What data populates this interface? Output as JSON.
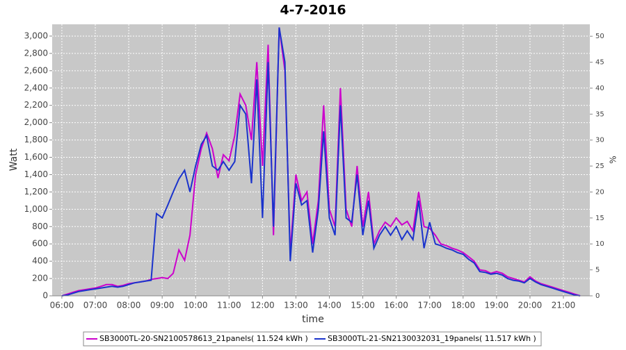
{
  "chart_data": {
    "type": "line",
    "title": "4-7-2016",
    "x_label": "time",
    "y_label": "Watt",
    "y2_label": "%",
    "x": [
      6,
      6.17,
      6.33,
      6.5,
      6.67,
      6.83,
      7,
      7.17,
      7.33,
      7.5,
      7.67,
      7.83,
      8,
      8.17,
      8.33,
      8.5,
      8.67,
      8.83,
      9,
      9.17,
      9.33,
      9.5,
      9.67,
      9.83,
      10,
      10.17,
      10.33,
      10.5,
      10.67,
      10.83,
      11,
      11.17,
      11.33,
      11.5,
      11.67,
      11.83,
      12,
      12.17,
      12.33,
      12.5,
      12.67,
      12.83,
      13,
      13.17,
      13.33,
      13.5,
      13.67,
      13.83,
      14,
      14.17,
      14.33,
      14.5,
      14.67,
      14.83,
      15,
      15.17,
      15.33,
      15.5,
      15.67,
      15.83,
      16,
      16.17,
      16.33,
      16.5,
      16.67,
      16.83,
      17,
      17.17,
      17.33,
      17.5,
      17.67,
      17.83,
      18,
      18.17,
      18.33,
      18.5,
      18.67,
      18.83,
      19,
      19.17,
      19.33,
      19.5,
      19.67,
      19.83,
      20,
      20.17,
      20.33,
      20.5,
      20.67,
      20.83,
      21,
      21.17,
      21.33,
      21.5
    ],
    "series": [
      {
        "name": "SB3000TL-20-SN2100578613_21panels( 11.524 kWh )",
        "color": "#cc00cc",
        "values": [
          0,
          20,
          40,
          60,
          70,
          80,
          90,
          110,
          130,
          130,
          110,
          120,
          140,
          150,
          160,
          170,
          190,
          200,
          210,
          200,
          260,
          530,
          410,
          700,
          1400,
          1700,
          1880,
          1700,
          1360,
          1630,
          1560,
          1850,
          2330,
          2200,
          1800,
          2700,
          1500,
          2900,
          700,
          3100,
          2600,
          500,
          1400,
          1100,
          1200,
          600,
          1100,
          2200,
          1000,
          800,
          2400,
          1000,
          800,
          1500,
          800,
          1200,
          600,
          750,
          850,
          800,
          900,
          820,
          860,
          750,
          1200,
          800,
          780,
          700,
          600,
          580,
          550,
          530,
          500,
          450,
          400,
          300,
          290,
          260,
          280,
          260,
          220,
          200,
          180,
          160,
          220,
          170,
          140,
          120,
          100,
          80,
          60,
          40,
          20,
          0
        ]
      },
      {
        "name": "SB3000TL-21-SN2130032031_19panels( 11.517 kWh )",
        "color": "#1a33cc",
        "values": [
          0,
          10,
          30,
          50,
          60,
          70,
          80,
          90,
          100,
          110,
          100,
          110,
          130,
          150,
          160,
          170,
          180,
          950,
          900,
          1050,
          1200,
          1350,
          1450,
          1200,
          1500,
          1750,
          1850,
          1500,
          1450,
          1550,
          1450,
          1550,
          2200,
          2100,
          1300,
          2500,
          900,
          2700,
          800,
          3100,
          2700,
          400,
          1300,
          1050,
          1100,
          500,
          1000,
          1900,
          900,
          700,
          2200,
          900,
          850,
          1400,
          700,
          1100,
          550,
          700,
          800,
          700,
          800,
          650,
          750,
          650,
          1100,
          550,
          850,
          600,
          580,
          550,
          530,
          500,
          480,
          420,
          380,
          280,
          270,
          250,
          260,
          240,
          200,
          180,
          170,
          150,
          200,
          160,
          130,
          110,
          90,
          70,
          50,
          30,
          10,
          0
        ]
      }
    ],
    "xlim": [
      5.71,
      21.79
    ],
    "xticks": [
      {
        "value": 6,
        "label": "06:00"
      },
      {
        "value": 7,
        "label": "07:00"
      },
      {
        "value": 8,
        "label": "08:00"
      },
      {
        "value": 9,
        "label": "09:00"
      },
      {
        "value": 10,
        "label": "10:00"
      },
      {
        "value": 11,
        "label": "11:00"
      },
      {
        "value": 12,
        "label": "12:00"
      },
      {
        "value": 13,
        "label": "13:00"
      },
      {
        "value": 14,
        "label": "14:00"
      },
      {
        "value": 15,
        "label": "15:00"
      },
      {
        "value": 16,
        "label": "16:00"
      },
      {
        "value": 17,
        "label": "17:00"
      },
      {
        "value": 18,
        "label": "18:00"
      },
      {
        "value": 19,
        "label": "19:00"
      },
      {
        "value": 20,
        "label": "20:00"
      },
      {
        "value": 21,
        "label": "21:00"
      }
    ],
    "ylim": [
      0,
      3136
    ],
    "yticks": [
      0,
      200,
      400,
      600,
      800,
      {
        "value": 1000,
        "label": "1,000"
      },
      {
        "value": 1200,
        "label": "1,200"
      },
      {
        "value": 1400,
        "label": "1,400"
      },
      {
        "value": 1600,
        "label": "1,600"
      },
      {
        "value": 1800,
        "label": "1,800"
      },
      {
        "value": 2000,
        "label": "2,000"
      },
      {
        "value": 2200,
        "label": "2,200"
      },
      {
        "value": 2400,
        "label": "2,400"
      },
      {
        "value": 2600,
        "label": "2,600"
      },
      {
        "value": 2800,
        "label": "2,800"
      },
      {
        "value": 3000,
        "label": "3,000"
      }
    ],
    "y2lim": [
      0,
      52.3
    ],
    "y2ticks": [
      0,
      5,
      10,
      15,
      20,
      25,
      30,
      35,
      40,
      45,
      50
    ],
    "grid": true,
    "legend": "bottom"
  }
}
